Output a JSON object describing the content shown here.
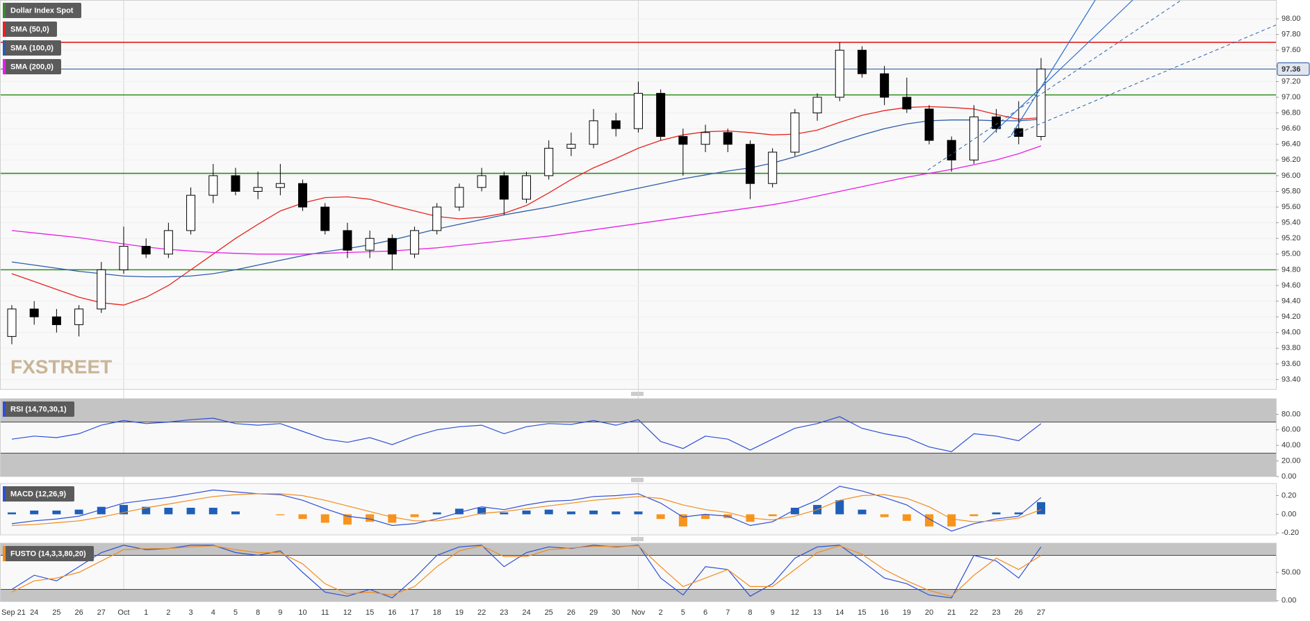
{
  "chart_data": {
    "type": "candlestick",
    "title": "Dollar Index Spot",
    "legend_color": "#3c8a2e",
    "watermark": "FXSTREET",
    "categories": [
      "Sep 21",
      "24",
      "25",
      "26",
      "27",
      "Oct",
      "1",
      "2",
      "3",
      "4",
      "5",
      "8",
      "9",
      "10",
      "11",
      "12",
      "15",
      "16",
      "17",
      "18",
      "19",
      "22",
      "23",
      "24",
      "25",
      "26",
      "29",
      "30",
      "Nov",
      "2",
      "5",
      "6",
      "7",
      "8",
      "9",
      "12",
      "13",
      "14",
      "15",
      "16",
      "19",
      "20",
      "21",
      "22",
      "23",
      "26",
      "27"
    ],
    "open": [
      93.95,
      94.3,
      94.2,
      94.1,
      94.3,
      94.8,
      95.1,
      95.0,
      95.3,
      95.75,
      96.0,
      95.8,
      95.85,
      95.9,
      95.6,
      95.3,
      95.05,
      95.2,
      95.0,
      95.3,
      95.6,
      95.85,
      96.0,
      95.7,
      96.0,
      96.35,
      96.4,
      96.7,
      96.6,
      97.05,
      96.5,
      96.4,
      96.55,
      96.4,
      95.9,
      96.3,
      96.8,
      97.0,
      97.6,
      97.3,
      97.0,
      96.85,
      96.45,
      96.2,
      96.75,
      96.6,
      96.5
    ],
    "high": [
      94.35,
      94.4,
      94.3,
      94.35,
      94.9,
      95.35,
      95.2,
      95.4,
      95.85,
      96.15,
      96.1,
      96.05,
      96.15,
      95.95,
      95.65,
      95.4,
      95.3,
      95.25,
      95.35,
      95.65,
      95.9,
      96.1,
      96.05,
      96.05,
      96.45,
      96.55,
      96.85,
      96.8,
      97.2,
      97.1,
      96.6,
      96.65,
      96.6,
      96.45,
      96.35,
      96.85,
      97.05,
      97.7,
      97.65,
      97.4,
      97.25,
      96.9,
      96.5,
      96.9,
      96.85,
      96.95,
      97.5
    ],
    "low": [
      93.85,
      94.1,
      94.0,
      93.95,
      94.25,
      94.75,
      94.95,
      94.95,
      95.25,
      95.65,
      95.75,
      95.7,
      95.75,
      95.55,
      95.25,
      94.95,
      94.95,
      94.8,
      94.95,
      95.25,
      95.55,
      95.8,
      95.5,
      95.65,
      95.95,
      96.25,
      96.35,
      96.5,
      96.55,
      96.45,
      96.0,
      96.3,
      96.3,
      95.7,
      95.85,
      96.25,
      96.7,
      96.95,
      97.25,
      96.9,
      96.8,
      96.4,
      96.05,
      96.15,
      96.55,
      96.4,
      96.45
    ],
    "close": [
      94.3,
      94.2,
      94.1,
      94.3,
      94.8,
      95.1,
      95.0,
      95.3,
      95.75,
      96.0,
      95.8,
      95.85,
      95.9,
      95.6,
      95.3,
      95.05,
      95.2,
      95.0,
      95.3,
      95.6,
      95.85,
      96.0,
      95.7,
      96.0,
      96.35,
      96.4,
      96.7,
      96.6,
      97.05,
      96.5,
      96.4,
      96.55,
      96.4,
      95.9,
      96.3,
      96.8,
      97.0,
      97.6,
      97.3,
      97.0,
      96.85,
      96.45,
      96.2,
      96.75,
      96.6,
      96.5,
      97.36
    ],
    "up_color": "#ffffff",
    "down_color": "#000000",
    "series": [
      {
        "name": "SMA (50,0)",
        "color": "#e8231e",
        "values": [
          94.75,
          94.65,
          94.55,
          94.45,
          94.38,
          94.35,
          94.45,
          94.6,
          94.8,
          95.0,
          95.2,
          95.38,
          95.55,
          95.65,
          95.72,
          95.73,
          95.7,
          95.62,
          95.55,
          95.48,
          95.45,
          95.47,
          95.52,
          95.62,
          95.78,
          95.95,
          96.1,
          96.22,
          96.35,
          96.45,
          96.52,
          96.56,
          96.57,
          96.55,
          96.52,
          96.53,
          96.58,
          96.68,
          96.77,
          96.83,
          96.87,
          96.88,
          96.87,
          96.85,
          96.78,
          96.72,
          96.74
        ]
      },
      {
        "name": "SMA (100,0)",
        "color": "#2c5da8",
        "values": [
          94.9,
          94.86,
          94.82,
          94.78,
          94.75,
          94.72,
          94.71,
          94.71,
          94.72,
          94.75,
          94.8,
          94.86,
          94.92,
          94.98,
          95.03,
          95.07,
          95.12,
          95.18,
          95.25,
          95.32,
          95.38,
          95.44,
          95.5,
          95.55,
          95.6,
          95.66,
          95.72,
          95.78,
          95.84,
          95.9,
          95.96,
          96.01,
          96.06,
          96.1,
          96.16,
          96.24,
          96.33,
          96.43,
          96.52,
          96.6,
          96.66,
          96.7,
          96.71,
          96.71,
          96.7,
          96.7,
          96.72
        ]
      },
      {
        "name": "SMA (200,0)",
        "color": "#e81ee8",
        "values": [
          95.3,
          95.27,
          95.24,
          95.21,
          95.17,
          95.13,
          95.09,
          95.06,
          95.04,
          95.02,
          95.01,
          95.0,
          95.0,
          95.0,
          95.01,
          95.02,
          95.03,
          95.04,
          95.06,
          95.08,
          95.11,
          95.14,
          95.17,
          95.2,
          95.23,
          95.27,
          95.31,
          95.35,
          95.39,
          95.43,
          95.47,
          95.51,
          95.55,
          95.59,
          95.63,
          95.68,
          95.74,
          95.8,
          95.86,
          95.92,
          95.98,
          96.03,
          96.08,
          96.14,
          96.2,
          96.28,
          96.38
        ]
      }
    ],
    "levels": [
      {
        "value": 97.7,
        "color": "#e31a1c"
      },
      {
        "value": 97.03,
        "color": "#2e8b1e"
      },
      {
        "value": 96.03,
        "color": "#2e8b1e"
      },
      {
        "value": 94.8,
        "color": "#2e8b1e"
      }
    ],
    "last_price": 97.36,
    "last_price_color": "#1f4e99",
    "ylim": [
      93.28,
      98.24
    ],
    "yticks": [
      {
        "value": 98.0,
        "label": "98.00"
      },
      {
        "value": 97.8,
        "label": "97.80"
      },
      {
        "value": 97.6,
        "label": "97.60"
      },
      {
        "value": 97.4,
        "label": "97.40"
      },
      {
        "value": 97.2,
        "label": "97.20"
      },
      {
        "value": 97.0,
        "label": "97.00"
      },
      {
        "value": 96.8,
        "label": "96.80"
      },
      {
        "value": 96.6,
        "label": "96.60"
      },
      {
        "value": 96.4,
        "label": "96.40"
      },
      {
        "value": 96.2,
        "label": "96.20"
      },
      {
        "value": 96.0,
        "label": "96.00"
      },
      {
        "value": 95.8,
        "label": "95.80"
      },
      {
        "value": 95.6,
        "label": "95.60"
      },
      {
        "value": 95.4,
        "label": "95.40"
      },
      {
        "value": 95.2,
        "label": "95.20"
      },
      {
        "value": 95.0,
        "label": "95.00"
      },
      {
        "value": 94.8,
        "label": "94.80"
      },
      {
        "value": 94.6,
        "label": "94.60"
      },
      {
        "value": 94.4,
        "label": "94.40"
      },
      {
        "value": 94.2,
        "label": "94.20"
      },
      {
        "value": 94.0,
        "label": "94.00"
      },
      {
        "value": 93.8,
        "label": "93.80"
      },
      {
        "value": 93.6,
        "label": "93.60"
      },
      {
        "value": 93.4,
        "label": "93.40"
      }
    ],
    "indicators": [
      {
        "type": "line",
        "title": "RSI (14,70,30,1)",
        "color": "#2c4fd8",
        "bands": [
          30,
          70
        ],
        "series": [
          {
            "color": "#2c4fd8",
            "values": [
              48,
              52,
              50,
              55,
              66,
              72,
              68,
              70,
              73,
              75,
              68,
              66,
              68,
              58,
              48,
              44,
              50,
              41,
              52,
              60,
              64,
              66,
              55,
              64,
              68,
              67,
              72,
              66,
              73,
              45,
              36,
              52,
              48,
              34,
              48,
              62,
              68,
              77,
              62,
              55,
              50,
              38,
              32,
              55,
              52,
              46,
              68
            ]
          }
        ],
        "ylim": [
          0,
          100
        ],
        "yticks": [
          {
            "value": 80,
            "label": "80.00"
          },
          {
            "value": 60,
            "label": "60.00"
          },
          {
            "value": 40,
            "label": "40.00"
          },
          {
            "value": 20,
            "label": "20.00"
          },
          {
            "value": 0,
            "label": "0.00"
          }
        ]
      },
      {
        "type": "macd",
        "title": "MACD (12,26,9)",
        "color": "#2c4fd8",
        "series": [
          {
            "color": "#2c4fd8",
            "values": [
              -0.1,
              -0.07,
              -0.05,
              -0.02,
              0.05,
              0.12,
              0.15,
              0.18,
              0.22,
              0.26,
              0.24,
              0.22,
              0.21,
              0.15,
              0.06,
              -0.02,
              -0.05,
              -0.12,
              -0.1,
              -0.05,
              0.02,
              0.08,
              0.05,
              0.1,
              0.14,
              0.15,
              0.19,
              0.2,
              0.22,
              0.12,
              -0.03,
              0.0,
              -0.02,
              -0.12,
              -0.08,
              0.05,
              0.15,
              0.3,
              0.25,
              0.18,
              0.1,
              -0.05,
              -0.18,
              -0.1,
              -0.05,
              -0.02,
              0.18
            ]
          },
          {
            "color": "#f28c1c",
            "values": [
              -0.12,
              -0.11,
              -0.09,
              -0.07,
              -0.03,
              0.02,
              0.07,
              0.11,
              0.15,
              0.19,
              0.21,
              0.22,
              0.22,
              0.2,
              0.15,
              0.09,
              0.03,
              -0.03,
              -0.07,
              -0.07,
              -0.04,
              0.01,
              0.03,
              0.06,
              0.09,
              0.12,
              0.15,
              0.17,
              0.19,
              0.17,
              0.1,
              0.05,
              0.02,
              -0.04,
              -0.06,
              -0.02,
              0.05,
              0.15,
              0.2,
              0.21,
              0.17,
              0.08,
              -0.05,
              -0.08,
              -0.07,
              -0.04,
              0.05
            ]
          }
        ],
        "histogram": {
          "positive_color": "#1f5fb8",
          "negative_color": "#f7941d",
          "values": [
            0.02,
            0.04,
            0.04,
            0.05,
            0.08,
            0.1,
            0.08,
            0.07,
            0.07,
            0.07,
            0.03,
            0.0,
            -0.01,
            -0.05,
            -0.09,
            -0.11,
            -0.08,
            -0.09,
            -0.03,
            0.02,
            0.06,
            0.07,
            0.02,
            0.04,
            0.05,
            0.03,
            0.04,
            0.03,
            0.03,
            -0.05,
            -0.13,
            -0.05,
            -0.04,
            -0.08,
            -0.02,
            0.07,
            0.1,
            0.15,
            0.05,
            -0.03,
            -0.07,
            -0.13,
            -0.13,
            -0.02,
            0.02,
            0.02,
            0.13
          ]
        },
        "ylim": [
          -0.22,
          0.33
        ],
        "yticks": [
          {
            "value": 0.2,
            "label": "0.20"
          },
          {
            "value": 0,
            "label": "0.00"
          },
          {
            "value": -0.2,
            "label": "-0.20"
          }
        ]
      },
      {
        "type": "line",
        "title": "FUSTO (14,3,3,80,20)",
        "color": "#f28c1c",
        "bands": [
          20,
          80
        ],
        "series": [
          {
            "color": "#2c4fd8",
            "values": [
              20,
              45,
              35,
              60,
              85,
              98,
              90,
              92,
              98,
              98,
              85,
              80,
              88,
              50,
              15,
              8,
              20,
              5,
              40,
              80,
              95,
              98,
              60,
              85,
              95,
              92,
              98,
              95,
              98,
              40,
              10,
              60,
              55,
              8,
              30,
              75,
              95,
              98,
              70,
              40,
              30,
              10,
              5,
              80,
              70,
              40,
              95
            ]
          },
          {
            "color": "#f28c1c",
            "values": [
              15,
              35,
              40,
              50,
              70,
              90,
              92,
              92,
              95,
              97,
              90,
              85,
              85,
              65,
              30,
              12,
              15,
              10,
              25,
              60,
              88,
              97,
              78,
              78,
              90,
              93,
              96,
              96,
              97,
              60,
              25,
              40,
              55,
              25,
              25,
              55,
              85,
              97,
              82,
              55,
              35,
              18,
              8,
              45,
              75,
              55,
              80
            ]
          }
        ],
        "ylim": [
          -1.5,
          101.5
        ],
        "yticks": [
          {
            "value": 50,
            "label": "50.00"
          },
          {
            "value": 0,
            "label": "0.00"
          }
        ]
      }
    ]
  }
}
